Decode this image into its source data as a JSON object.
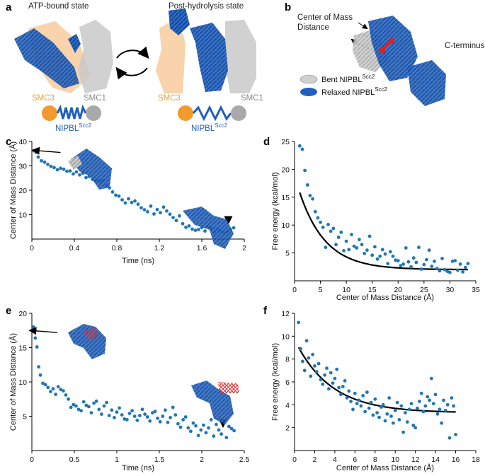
{
  "panel_letters": {
    "a": "a",
    "b": "b",
    "c": "c",
    "d": "d",
    "e": "e",
    "f": "f"
  },
  "panel_a": {
    "left_title": "ATP-bound state",
    "right_title": "Post-hydrolysis state",
    "smc3": "SMC3",
    "smc1": "SMC1",
    "nipbl": "NIPBL",
    "nipbl_sup": "Scc2",
    "colors": {
      "smc3": "#f0a040",
      "smc1": "#b0b0b0",
      "nipbl": "#1f5fbf"
    }
  },
  "panel_b": {
    "com_label_line1": "Center of Mass",
    "com_label_line2": "Distance",
    "cterm": "C-terminus",
    "legend": [
      {
        "label": "Bent NIPBL",
        "sup": "Scc2",
        "color": "#cfcfcf"
      },
      {
        "label": "Relaxed NIPBL",
        "sup": "Scc2",
        "color": "#1f5fbf"
      }
    ]
  },
  "chart_data": [
    {
      "panel": "c",
      "type": "scatter",
      "xlabel": "Time (ns)",
      "ylabel": "Center of Mass Distance (Å)",
      "xlim": [
        0,
        2.0
      ],
      "ylim": [
        0,
        40
      ],
      "xticks": [
        0,
        0.4,
        0.8,
        1.2,
        1.6,
        2
      ],
      "xtick_labels": [
        "0",
        "0.4",
        "0.8",
        "1.2",
        "1.6",
        "2"
      ],
      "yticks": [
        10,
        20,
        30,
        40
      ],
      "ytick_labels": [
        "10",
        "20",
        "30",
        "40"
      ],
      "color": "#1f77b4",
      "x": [
        0.02,
        0.04,
        0.06,
        0.09,
        0.12,
        0.15,
        0.18,
        0.21,
        0.24,
        0.27,
        0.3,
        0.33,
        0.36,
        0.39,
        0.42,
        0.45,
        0.48,
        0.51,
        0.54,
        0.57,
        0.6,
        0.62,
        0.65,
        0.67,
        0.7,
        0.73,
        0.76,
        0.79,
        0.82,
        0.85,
        0.88,
        0.91,
        0.94,
        0.97,
        1.0,
        1.03,
        1.06,
        1.09,
        1.12,
        1.15,
        1.18,
        1.21,
        1.24,
        1.27,
        1.3,
        1.33,
        1.36,
        1.39,
        1.42,
        1.45,
        1.48,
        1.51,
        1.54,
        1.57,
        1.6,
        1.63,
        1.66,
        1.69,
        1.72,
        1.75,
        1.78,
        1.81,
        1.84,
        1.87,
        1.9
      ],
      "y": [
        36.2,
        35.5,
        33.6,
        32.1,
        31.5,
        30.6,
        29.8,
        29.3,
        28.4,
        29.0,
        28.6,
        27.8,
        27.9,
        26.7,
        27.5,
        26.3,
        27.0,
        25.2,
        25.6,
        24.5,
        23.8,
        24.0,
        23.4,
        24.2,
        22.0,
        21.0,
        19.3,
        18.0,
        17.6,
        16.1,
        14.8,
        16.5,
        15.0,
        15.6,
        14.3,
        12.8,
        12.0,
        11.2,
        13.5,
        10.3,
        12.1,
        10.8,
        13.1,
        11.5,
        10.2,
        8.8,
        7.6,
        9.5,
        6.3,
        4.8,
        5.4,
        4.1,
        3.6,
        3.9,
        4.7,
        3.3,
        5.2,
        4.3,
        2.7,
        4.0,
        3.2,
        2.5,
        3.0,
        3.9,
        4.6
      ],
      "annotation_arrow": {
        "x": 0.27,
        "y": 35.5
      },
      "annotation_arrowhead": {
        "x": 1.85,
        "y": 6.5
      }
    },
    {
      "panel": "d",
      "type": "scatter",
      "xlabel": "Center of Mass Distance (Å)",
      "ylabel": "Free energy (kcal/mol)",
      "xlim": [
        0,
        35
      ],
      "ylim": [
        0,
        25
      ],
      "xticks": [
        0,
        5,
        10,
        15,
        20,
        25,
        30,
        35
      ],
      "xtick_labels": [
        "0",
        "5",
        "10",
        "15",
        "20",
        "25",
        "30",
        "35"
      ],
      "yticks": [
        5,
        10,
        15,
        20,
        25
      ],
      "ytick_labels": [
        "5",
        "10",
        "15",
        "20",
        "25"
      ],
      "color": "#1f77b4",
      "fit_curve": {
        "a": 16.9,
        "b": 0.2,
        "c": 2.0
      },
      "x": [
        1.0,
        1.5,
        2.0,
        2.5,
        3.0,
        3.5,
        4.0,
        4.5,
        5.0,
        5.5,
        6.0,
        6.5,
        7.0,
        7.5,
        8.0,
        8.5,
        9.0,
        9.5,
        10.0,
        10.5,
        11.0,
        11.5,
        12.0,
        12.5,
        13.0,
        13.5,
        14.0,
        14.5,
        15.0,
        15.5,
        16.0,
        16.5,
        17.0,
        17.5,
        18.0,
        18.5,
        19.0,
        19.5,
        20.0,
        20.5,
        21.0,
        21.5,
        22.0,
        22.5,
        23.0,
        23.5,
        24.0,
        24.5,
        25.0,
        25.5,
        26.0,
        26.5,
        27.0,
        27.5,
        28.0,
        28.5,
        29.0,
        29.5,
        30.0,
        30.5,
        31.0,
        31.5,
        32.0,
        32.5,
        33.0,
        33.5
      ],
      "y": [
        24.2,
        23.6,
        19.8,
        17.2,
        15.3,
        14.7,
        12.4,
        11.3,
        10.5,
        9.6,
        6.0,
        10.1,
        8.9,
        9.4,
        6.5,
        7.8,
        8.7,
        5.4,
        7.1,
        5.6,
        8.3,
        6.2,
        5.9,
        7.4,
        6.5,
        4.9,
        5.5,
        8.0,
        4.6,
        6.1,
        3.9,
        4.4,
        5.6,
        4.8,
        3.1,
        5.2,
        4.4,
        3.7,
        3.6,
        2.7,
        3.0,
        5.9,
        3.4,
        2.5,
        4.1,
        3.3,
        6.0,
        2.1,
        2.9,
        3.8,
        5.5,
        2.6,
        3.5,
        2.2,
        1.8,
        4.0,
        2.0,
        1.7,
        1.5,
        3.5,
        3.6,
        1.9,
        3.0,
        1.6,
        2.4,
        3.1
      ]
    },
    {
      "panel": "e",
      "type": "scatter",
      "xlabel": "Time (ns)",
      "ylabel": "Center of Mass Distance (Å)",
      "xlim": [
        0,
        2.5
      ],
      "ylim": [
        0,
        20
      ],
      "xticks": [
        0,
        0.5,
        1,
        1.5,
        2,
        2.5
      ],
      "xtick_labels": [
        "0",
        "0.5",
        "1",
        "1.5",
        "2",
        "2.5"
      ],
      "yticks": [
        5,
        10,
        15,
        20
      ],
      "ytick_labels": [
        "5",
        "10",
        "15",
        "20"
      ],
      "color": "#1f77b4",
      "x": [
        0.02,
        0.04,
        0.06,
        0.08,
        0.1,
        0.13,
        0.16,
        0.19,
        0.22,
        0.25,
        0.28,
        0.31,
        0.34,
        0.37,
        0.4,
        0.43,
        0.46,
        0.49,
        0.52,
        0.55,
        0.58,
        0.61,
        0.64,
        0.67,
        0.7,
        0.73,
        0.76,
        0.79,
        0.82,
        0.85,
        0.88,
        0.91,
        0.94,
        0.97,
        1.0,
        1.03,
        1.06,
        1.09,
        1.12,
        1.15,
        1.18,
        1.21,
        1.24,
        1.27,
        1.3,
        1.33,
        1.36,
        1.39,
        1.42,
        1.45,
        1.48,
        1.51,
        1.54,
        1.57,
        1.6,
        1.63,
        1.66,
        1.69,
        1.72,
        1.75,
        1.78,
        1.81,
        1.84,
        1.87,
        1.9,
        1.93,
        1.96,
        1.99,
        2.02,
        2.05,
        2.08,
        2.11,
        2.14,
        2.17,
        2.2,
        2.23,
        2.26,
        2.29,
        2.32,
        2.35,
        2.38
      ],
      "y": [
        18.0,
        16.4,
        15.1,
        12.2,
        11.0,
        9.8,
        9.6,
        9.2,
        8.6,
        9.0,
        8.2,
        9.3,
        8.9,
        8.7,
        8.1,
        7.5,
        6.3,
        6.7,
        6.5,
        6.0,
        5.8,
        7.1,
        6.6,
        6.4,
        5.5,
        6.9,
        7.2,
        6.0,
        5.3,
        6.5,
        7.0,
        5.1,
        5.9,
        4.8,
        5.6,
        6.2,
        5.2,
        4.6,
        4.5,
        5.4,
        5.8,
        5.0,
        4.4,
        5.1,
        6.0,
        5.3,
        4.9,
        4.3,
        5.5,
        5.7,
        4.7,
        4.2,
        5.0,
        5.9,
        4.1,
        4.8,
        6.3,
        5.2,
        3.9,
        3.4,
        4.5,
        4.9,
        3.3,
        2.8,
        4.0,
        3.6,
        2.2,
        3.0,
        3.7,
        2.6,
        3.3,
        4.5,
        2.1,
        3.8,
        3.0,
        2.4,
        4.2,
        1.9,
        3.5,
        3.2,
        2.9
      ],
      "annotation_arrow": {
        "x": 0.3,
        "y": 17.2
      },
      "annotation_arrowhead": {
        "x": 2.25,
        "y": 3.5
      }
    },
    {
      "panel": "f",
      "type": "scatter",
      "xlabel": "Center of Mass Distance (Å)",
      "ylabel": "Free energy (kcal/mol)",
      "xlim": [
        0,
        18
      ],
      "ylim": [
        0,
        12
      ],
      "xticks": [
        0,
        2,
        4,
        6,
        8,
        10,
        12,
        14,
        16,
        18
      ],
      "xtick_labels": [
        "0",
        "2",
        "4",
        "6",
        "8",
        "10",
        "12",
        "14",
        "16",
        "18"
      ],
      "yticks": [
        2,
        4,
        6,
        8,
        10,
        12
      ],
      "ytick_labels": [
        "2",
        "4",
        "6",
        "8",
        "10",
        "12"
      ],
      "color": "#1f77b4",
      "fit_curve": {
        "a": 6.4,
        "b": 0.28,
        "c": 3.3
      },
      "x": [
        0.4,
        0.6,
        0.8,
        1.0,
        1.2,
        1.4,
        1.6,
        1.8,
        2.0,
        2.2,
        2.4,
        2.6,
        2.8,
        3.0,
        3.2,
        3.4,
        3.6,
        3.8,
        4.0,
        4.2,
        4.4,
        4.6,
        4.8,
        5.0,
        5.2,
        5.4,
        5.6,
        5.8,
        6.0,
        6.2,
        6.4,
        6.6,
        6.8,
        7.0,
        7.2,
        7.4,
        7.6,
        7.8,
        8.0,
        8.2,
        8.4,
        8.6,
        8.8,
        9.0,
        9.2,
        9.4,
        9.6,
        9.8,
        10.0,
        10.2,
        10.4,
        10.6,
        10.8,
        11.0,
        11.2,
        11.4,
        11.6,
        11.8,
        12.0,
        12.2,
        12.4,
        12.6,
        12.8,
        13.0,
        13.2,
        13.4,
        13.6,
        13.8,
        14.0,
        14.2,
        14.4,
        14.6,
        14.8,
        15.0,
        15.2,
        15.4,
        15.6,
        15.8,
        16.0
      ],
      "y": [
        11.2,
        8.9,
        7.8,
        7.0,
        9.6,
        8.1,
        6.5,
        8.4,
        7.4,
        6.9,
        7.6,
        6.2,
        5.8,
        6.6,
        7.2,
        5.4,
        6.8,
        5.9,
        6.3,
        7.1,
        5.5,
        4.9,
        5.6,
        6.1,
        4.6,
        5.2,
        4.3,
        3.6,
        5.0,
        4.1,
        4.4,
        3.9,
        4.8,
        3.4,
        5.1,
        3.7,
        4.2,
        3.1,
        4.5,
        3.3,
        2.9,
        3.8,
        4.0,
        2.6,
        3.2,
        4.6,
        3.0,
        2.4,
        3.5,
        4.2,
        2.7,
        3.9,
        1.6,
        3.3,
        2.5,
        3.6,
        4.1,
        2.2,
        2.0,
        3.7,
        4.3,
        5.0,
        3.4,
        3.9,
        4.7,
        4.4,
        6.3,
        4.1,
        4.9,
        3.2,
        3.6,
        2.4,
        4.4,
        3.5,
        4.0,
        1.1,
        4.6,
        3.9,
        1.4
      ]
    }
  ]
}
